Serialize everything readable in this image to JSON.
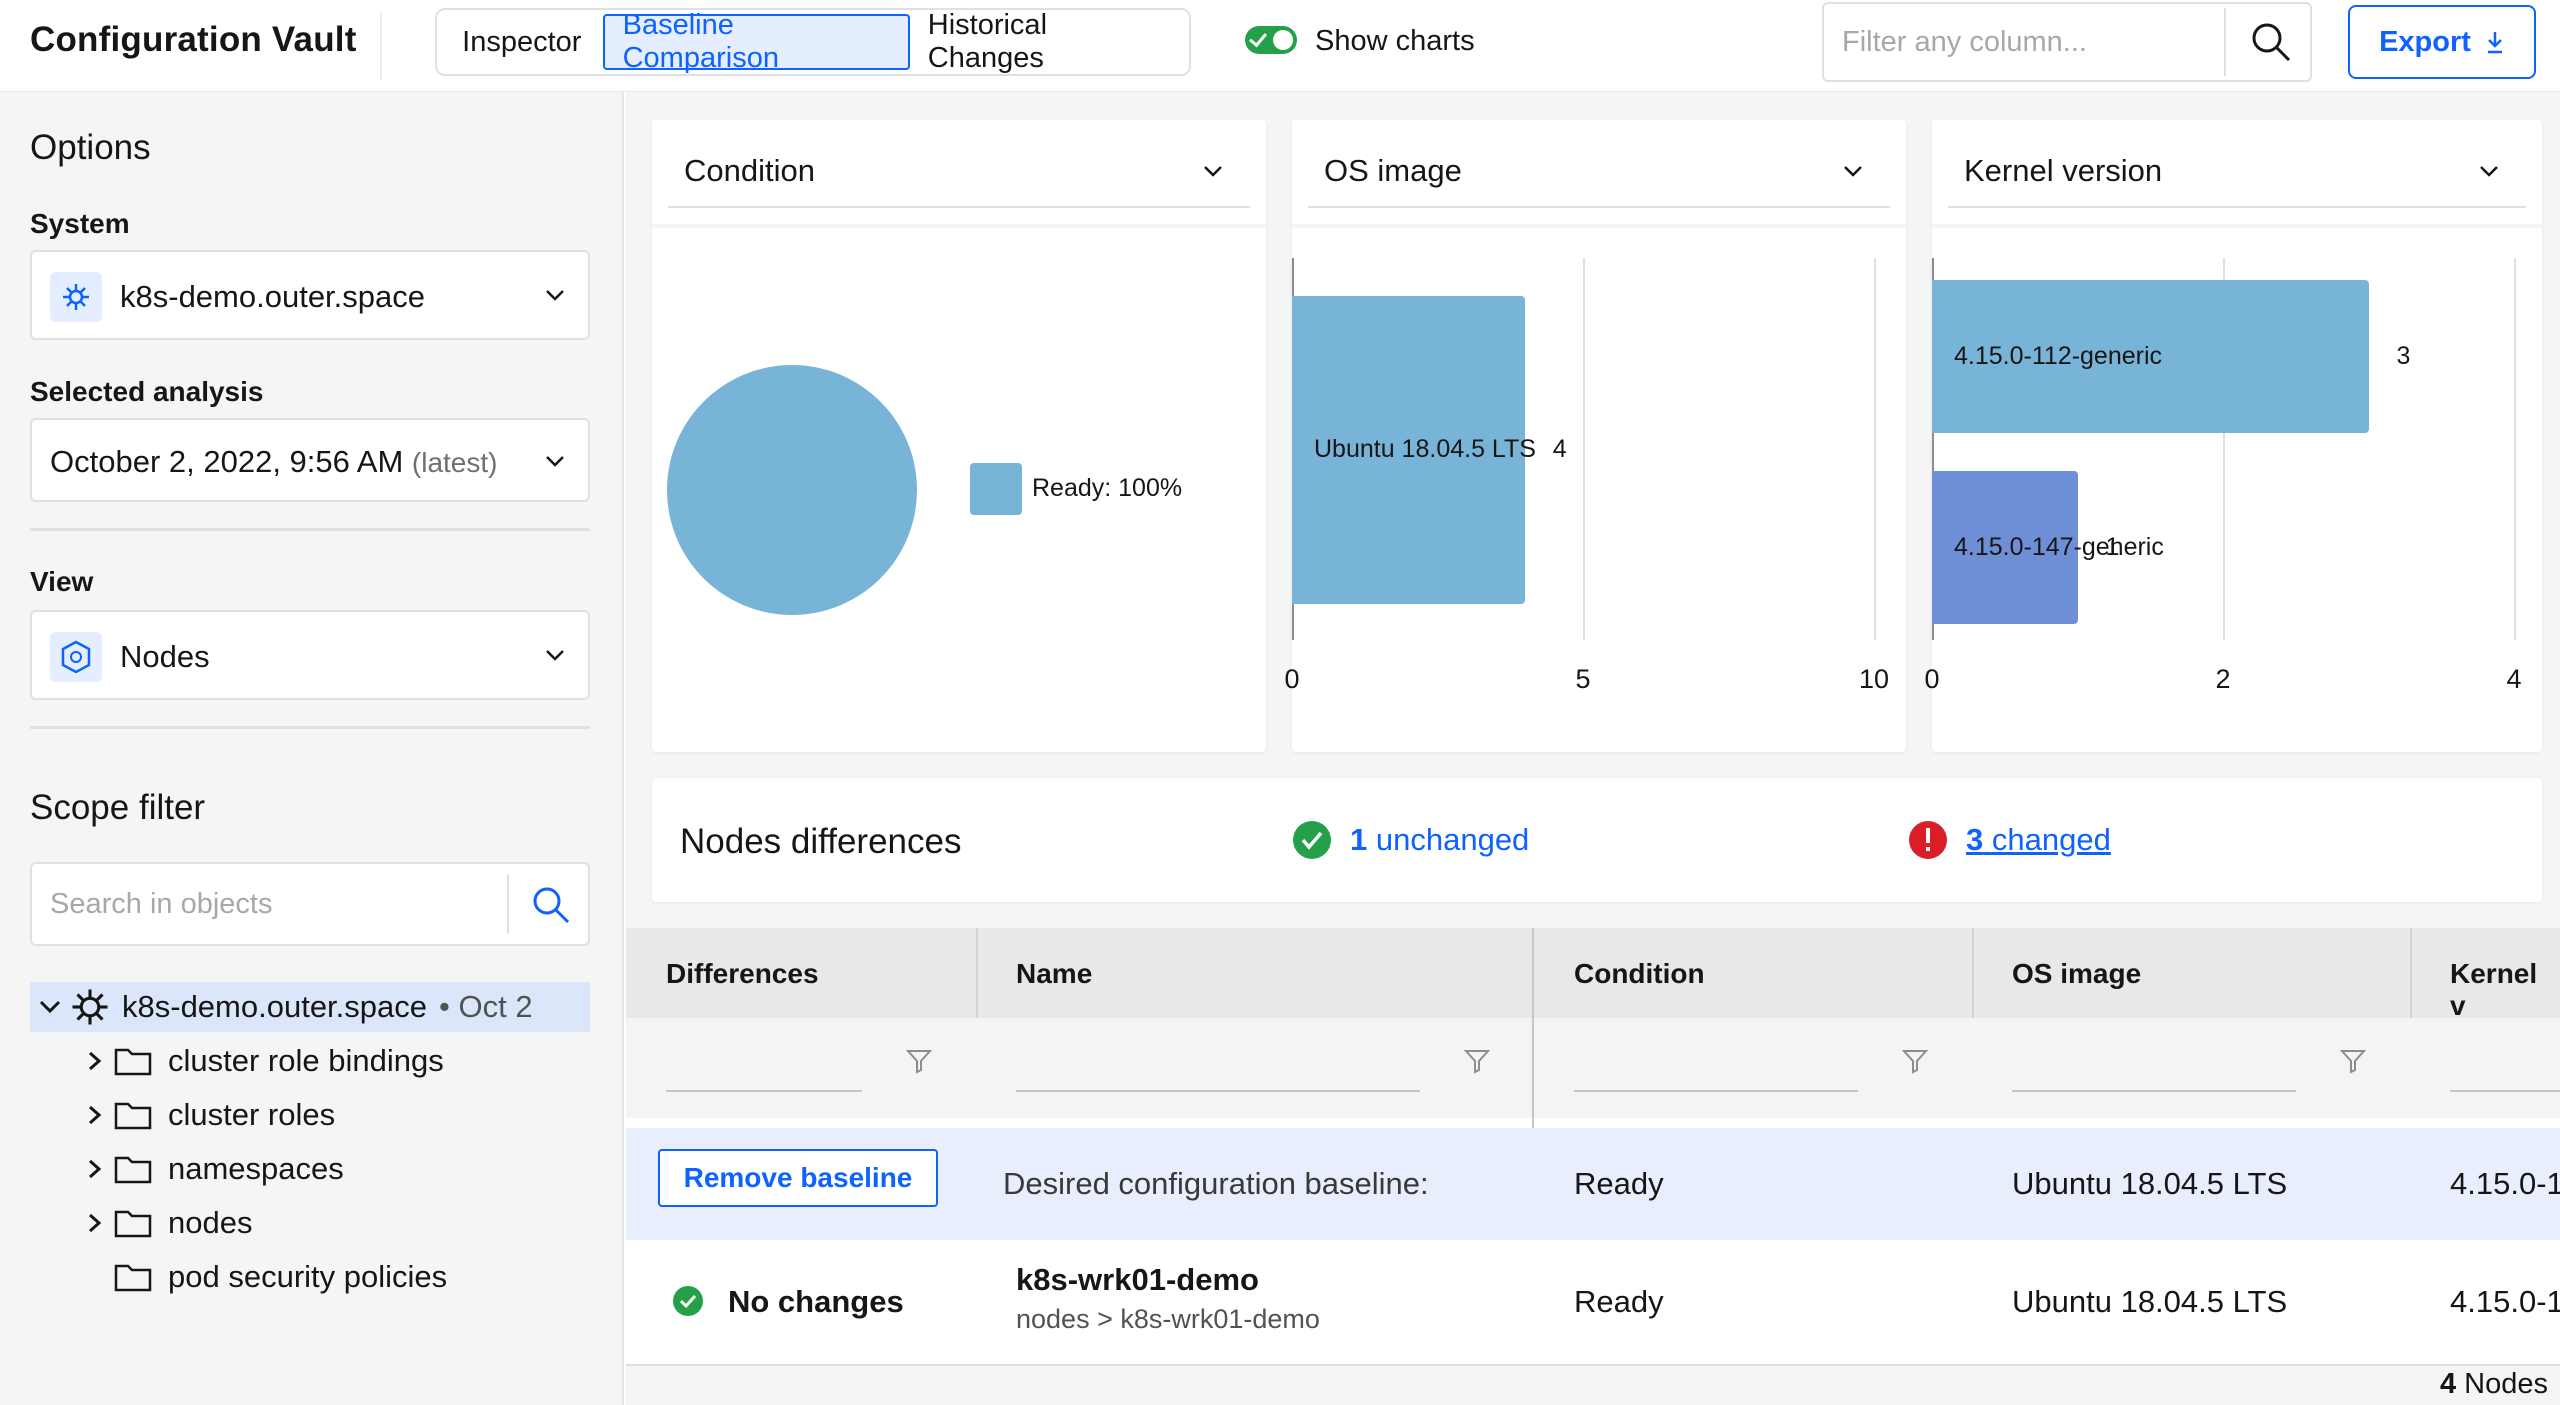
{
  "header": {
    "app_title": "Configuration Vault",
    "tabs": [
      {
        "label": "Inspector"
      },
      {
        "label": "Baseline Comparison",
        "selected": true
      },
      {
        "label": "Historical Changes"
      }
    ],
    "show_charts_label": "Show charts",
    "show_charts_on": true,
    "filter_placeholder": "Filter any column...",
    "export_label": "Export"
  },
  "sidebar": {
    "options_title": "Options",
    "system_label": "System",
    "system_value": "k8s-demo.outer.space",
    "analysis_label": "Selected analysis",
    "analysis_value": "October 2, 2022, 9:56 AM",
    "analysis_suffix": "(latest)",
    "view_label": "View",
    "view_value": "Nodes",
    "scope_title": "Scope filter",
    "search_placeholder": "Search in objects",
    "tree": {
      "root_label": "k8s-demo.outer.space",
      "root_date": "• Oct 2",
      "children": [
        {
          "label": "cluster role bindings",
          "expandable": true
        },
        {
          "label": "cluster roles",
          "expandable": true
        },
        {
          "label": "namespaces",
          "expandable": true
        },
        {
          "label": "nodes",
          "expandable": true
        },
        {
          "label": "pod security policies",
          "expandable": false
        }
      ]
    }
  },
  "charts": {
    "selects": [
      "Condition",
      "OS image",
      "Kernel version"
    ]
  },
  "chart_data": [
    {
      "type": "pie",
      "categories": [
        "Ready"
      ],
      "values": [
        100
      ],
      "legend": [
        "Ready:  100%"
      ],
      "color": "#78b4d8"
    },
    {
      "type": "bar",
      "orientation": "horizontal",
      "categories": [
        "Ubuntu 18.04.5 LTS"
      ],
      "values": [
        4
      ],
      "xlim": [
        0,
        10
      ],
      "xticks": [
        "0",
        "5",
        "10"
      ],
      "colors": [
        "#78b4d8"
      ]
    },
    {
      "type": "bar",
      "orientation": "horizontal",
      "categories": [
        "4.15.0-112-generic",
        "4.15.0-147-generic"
      ],
      "values": [
        3,
        1
      ],
      "xlim": [
        0,
        4
      ],
      "xticks": [
        "0",
        "2",
        "4"
      ],
      "colors": [
        "#78b4d8",
        "#6e8fd6"
      ]
    }
  ],
  "differences": {
    "title": "Nodes differences",
    "unchanged_count": "1",
    "unchanged_label": "unchanged",
    "changed_count": "3",
    "changed_label": "changed"
  },
  "table": {
    "columns": [
      "Differences",
      "Name",
      "Condition",
      "OS image",
      "Kernel v"
    ],
    "baseline": {
      "button": "Remove baseline",
      "name": "Desired configuration baseline:",
      "condition": "Ready",
      "os_image": "Ubuntu 18.04.5 LTS",
      "kernel": "4.15.0-1"
    },
    "rows": [
      {
        "difference": "No changes",
        "name": "k8s-wrk01-demo",
        "path": "nodes > k8s-wrk01-demo",
        "condition": "Ready",
        "os_image": "Ubuntu 18.04.5 LTS",
        "kernel": "4.15.0-1"
      }
    ],
    "footer_count": "4",
    "footer_label": "Nodes"
  },
  "colors": {
    "accent": "#0f62fe",
    "success": "#24a148",
    "error": "#da1e28",
    "chart_blue": "#78b4d8",
    "chart_indigo": "#6e8fd6"
  }
}
